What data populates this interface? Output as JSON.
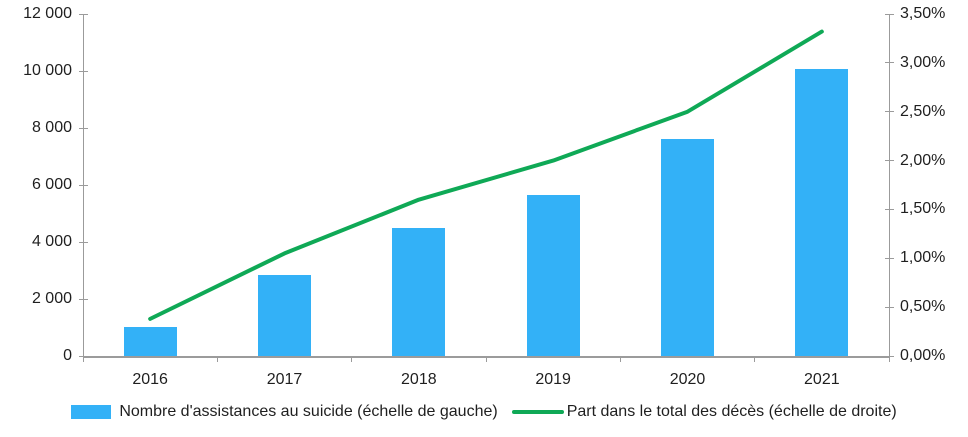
{
  "colors": {
    "bar": "#33B1F7",
    "line": "#0FA956",
    "axis": "#9B9B9B",
    "text": "#1F1F1F"
  },
  "chart_data": {
    "type": "combo",
    "categories": [
      "2016",
      "2017",
      "2018",
      "2019",
      "2020",
      "2021"
    ],
    "series": [
      {
        "name": "Nombre d'assistances au suicide (échelle de gauche)",
        "type": "bar",
        "axis": "left",
        "color": "#33B1F7",
        "values": [
          1018,
          2838,
          4480,
          5661,
          7603,
          10064
        ]
      },
      {
        "name": "Part dans le total des décès (échelle de droite)",
        "type": "line",
        "axis": "right",
        "color": "#0FA956",
        "values": [
          0.38,
          1.05,
          1.6,
          2.0,
          2.5,
          3.32
        ]
      }
    ],
    "left_axis": {
      "min": 0,
      "max": 12000,
      "step": 2000,
      "tick_labels": [
        "0",
        "2 000",
        "4 000",
        "6 000",
        "8 000",
        "10 000",
        "12 000"
      ]
    },
    "right_axis": {
      "min": 0,
      "max": 3.5,
      "step": 0.5,
      "tick_labels": [
        "0,00%",
        "0,50%",
        "1,00%",
        "1,50%",
        "2,00%",
        "2,50%",
        "3,00%",
        "3,50%"
      ]
    },
    "grid": false,
    "legend_position": "bottom",
    "xlabel": "",
    "ylabel_left": "",
    "ylabel_right": ""
  },
  "legend": {
    "bar_label": "Nombre d'assistances au suicide (échelle de gauche)",
    "line_label": "Part dans le total des décès (échelle de droite)"
  }
}
